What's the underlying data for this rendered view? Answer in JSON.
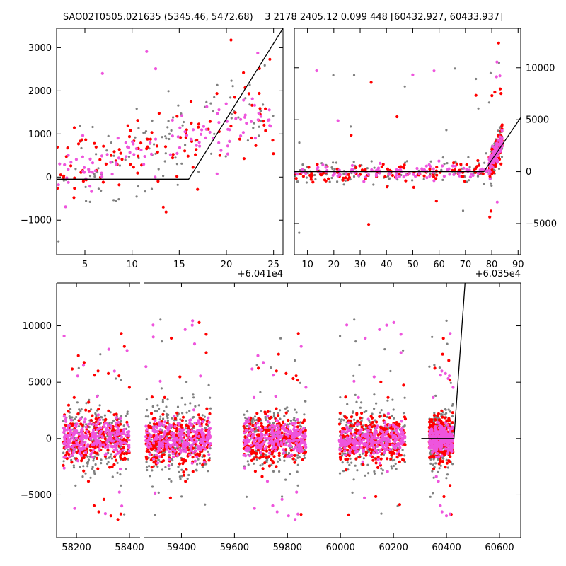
{
  "title": "SAO02T0505.021635 (5345.46, 5472.68)    3 2178 2405.12 0.099 448 [60432.927, 60433.937]",
  "colors": {
    "gray": "#808080",
    "red": "#ff0000",
    "magenta": "#ee55dd",
    "line": "#000000",
    "background": "#ffffff"
  },
  "chart_data": [
    {
      "type": "scatter",
      "panel": "top-left",
      "xlim": [
        2,
        26
      ],
      "ylim": [
        -1800,
        3450
      ],
      "xticks": [
        5,
        10,
        15,
        20,
        25
      ],
      "yticks": [
        -1000,
        0,
        1000,
        2000,
        3000
      ],
      "xtick_labels": [
        "5",
        "10",
        "15",
        "20",
        "25"
      ],
      "ytick_labels": [
        "−1000",
        "0",
        "1000",
        "2000",
        "3000"
      ],
      "y_axis_side": "left",
      "offset_text": "+6.041e4",
      "x_offset": 60410,
      "clusters": [
        {
          "x": [
            2,
            25
          ],
          "y_center": [
            -50,
            1600
          ],
          "y_spread": 500
        }
      ],
      "model_line": {
        "x": [
          2,
          16,
          26
        ],
        "y": [
          -50,
          -50,
          3450
        ]
      }
    },
    {
      "type": "scatter",
      "panel": "top-right",
      "xlim": [
        5,
        91
      ],
      "ylim": [
        -8000,
        13800
      ],
      "xticks": [
        10,
        20,
        30,
        40,
        50,
        60,
        70,
        80,
        90
      ],
      "yticks": [
        -5000,
        0,
        5000,
        10000
      ],
      "xtick_labels": [
        "10",
        "20",
        "30",
        "40",
        "50",
        "60",
        "70",
        "80",
        "90"
      ],
      "ytick_labels": [
        "−5000",
        "0",
        "5000",
        "10000"
      ],
      "y_axis_side": "right",
      "offset_text": "+6.035e4",
      "x_offset": 60350,
      "clusters": [
        {
          "x": [
            5,
            79
          ],
          "y_center": [
            0,
            0
          ],
          "y_spread": 600
        },
        {
          "x": [
            79,
            84
          ],
          "y_center": [
            500,
            3000
          ],
          "y_spread": 800
        }
      ],
      "model_line": {
        "x": [
          5,
          77,
          91
        ],
        "y": [
          0,
          0,
          5200
        ]
      }
    },
    {
      "type": "scatter",
      "panel": "bottom",
      "xlim": [
        58125,
        60680
      ],
      "ylim": [
        -8800,
        13800
      ],
      "xticks": [
        58200,
        58400,
        59400,
        59600,
        59800,
        60000,
        60200,
        60400,
        60600
      ],
      "yticks": [
        -5000,
        0,
        5000,
        10000
      ],
      "xtick_labels": [
        "58200",
        "58400",
        "59400",
        "59600",
        "59800",
        "60000",
        "60200",
        "60400",
        "60600"
      ],
      "ytick_labels": [
        "−5000",
        "0",
        "5000",
        "10000"
      ],
      "y_axis_side": "left",
      "axis_break": {
        "from": 58440,
        "to": 59260
      },
      "clusters": [
        {
          "x": [
            58150,
            58400
          ],
          "y_center": [
            0,
            0
          ],
          "y_spread": 1400
        },
        {
          "x": [
            59265,
            59510
          ],
          "y_center": [
            0,
            0
          ],
          "y_spread": 1500
        },
        {
          "x": [
            59635,
            59870
          ],
          "y_center": [
            0,
            0
          ],
          "y_spread": 1300
        },
        {
          "x": [
            59995,
            60245
          ],
          "y_center": [
            0,
            0
          ],
          "y_spread": 1300
        },
        {
          "x": [
            60335,
            60425
          ],
          "y_center": [
            0,
            0
          ],
          "y_spread": 1200
        }
      ],
      "model_line": {
        "x": [
          60305,
          60428,
          60470
        ],
        "y": [
          0,
          0,
          13800
        ]
      }
    }
  ]
}
